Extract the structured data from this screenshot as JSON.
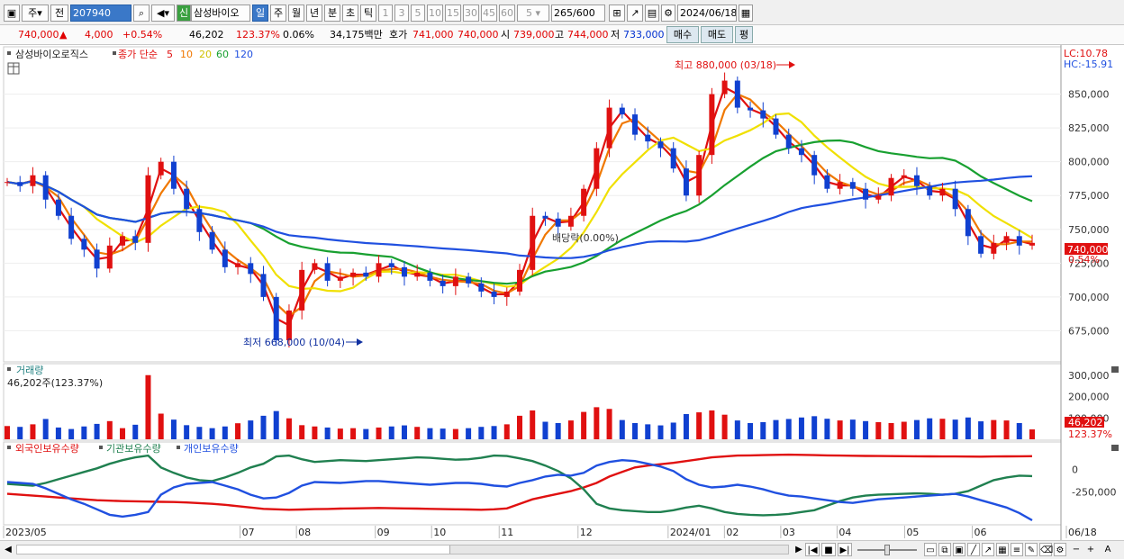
{
  "toolbar": {
    "period_main": "주",
    "prev_label": "전",
    "code": "207940",
    "flag": "신",
    "name": "삼성바이오",
    "period_tabs": [
      "일",
      "주",
      "월",
      "년",
      "분",
      "초",
      "틱"
    ],
    "intervals": [
      "1",
      "3",
      "5",
      "10",
      "15",
      "30",
      "45",
      "60"
    ],
    "interval_value": "5",
    "count": "265",
    "count_max": "/600",
    "date": "2024/06/18"
  },
  "quote": {
    "price": "740,000",
    "change": "4,000",
    "change_pct": "+0.54%",
    "volume": "46,202",
    "volume_ratio": "123.37%",
    "turnover_rate": "0.06%",
    "amount": "34,175백만",
    "bid_label": "호가",
    "ask_price": "741,000",
    "bid_price": "740,000",
    "open_label": "시",
    "open": "739,000",
    "high_label": "고",
    "high": "744,000",
    "low_label": "저",
    "low": "733,000",
    "buy_button": "매수",
    "sell_button": "매도",
    "eval_button": "평"
  },
  "chart_data": {
    "type": "candlestick",
    "title": "삼성바이오로직스",
    "ma_label": "종가 단순",
    "ma_periods": [
      5,
      10,
      20,
      60,
      120
    ],
    "ma_colors": [
      "#e01010",
      "#f07800",
      "#f0e000",
      "#18a030",
      "#2050e0"
    ],
    "lc_label": "LC:10.78",
    "hc_label": "HC:-15.91",
    "y_ticks": [
      850000,
      825000,
      800000,
      775000,
      750000,
      725000,
      700000,
      675000
    ],
    "y_tick_labels": [
      "850,000",
      "825,000",
      "800,000",
      "775,000",
      "750,000",
      "725,000",
      "700,000",
      "675,000"
    ],
    "ylim": [
      652000,
      885000
    ],
    "price_marker": "740,000",
    "price_marker_pct": "0.54%",
    "annotations": {
      "high": "최고 880,000 (03/18)",
      "low": "최저 668,000 (10/04)",
      "dividend": "배당락(0.00%)"
    },
    "x_labels": [
      "2023/05",
      "07",
      "08",
      "09",
      "10",
      "11",
      "12",
      "2024/01",
      "02",
      "03",
      "04",
      "05",
      "06",
      "06/18"
    ],
    "series": [
      {
        "name": "종가",
        "values": [
          785000,
          782000,
          790000,
          772000,
          760000,
          743000,
          735000,
          721000,
          738000,
          745000,
          740000,
          790000,
          800000,
          780000,
          765000,
          748000,
          735000,
          722000,
          725000,
          717000,
          700000,
          668000,
          690000,
          720000,
          725000,
          712000,
          715000,
          718000,
          715000,
          725000,
          722000,
          715000,
          718000,
          712000,
          708000,
          715000,
          710000,
          704000,
          700000,
          704000,
          720000,
          760000,
          758000,
          752000,
          760000,
          780000,
          810000,
          840000,
          835000,
          820000,
          815000,
          810000,
          795000,
          775000,
          805000,
          850000,
          860000,
          840000,
          838000,
          832000,
          820000,
          810000,
          805000,
          790000,
          780000,
          785000,
          780000,
          772000,
          775000,
          788000,
          790000,
          782000,
          775000,
          780000,
          765000,
          745000,
          732000,
          740000,
          745000,
          738000,
          740000
        ]
      }
    ],
    "volume": {
      "label": "거래량",
      "current": "46,202주(123.37%)",
      "y_tick_labels": [
        "300,000",
        "200,000",
        "100,000"
      ],
      "ylim": [
        0,
        320000
      ],
      "current_marker": "46,202",
      "current_marker_pct": "123.37%",
      "values": [
        62000,
        58000,
        70000,
        95000,
        55000,
        48000,
        60000,
        72000,
        85000,
        52000,
        68000,
        300000,
        120000,
        92000,
        66000,
        58000,
        52000,
        60000,
        75000,
        88000,
        110000,
        132000,
        98000,
        66000,
        60000,
        55000,
        50000,
        52000,
        48000,
        55000,
        60000,
        65000,
        58000,
        52000,
        50000,
        48000,
        52000,
        58000,
        62000,
        70000,
        110000,
        135000,
        82000,
        76000,
        88000,
        128000,
        150000,
        142000,
        90000,
        76000,
        70000,
        65000,
        78000,
        118000,
        126000,
        135000,
        115000,
        88000,
        76000,
        80000,
        90000,
        95000,
        102000,
        108000,
        96000,
        88000,
        92000,
        85000,
        80000,
        76000,
        82000,
        90000,
        98000,
        96000,
        92000,
        102000,
        84000,
        90000,
        88000,
        76000,
        46202
      ]
    },
    "holdings": {
      "labels": [
        "외국인보유수량",
        "기관보유수량",
        "개인보유수량"
      ],
      "colors": [
        "#e01010",
        "#208050",
        "#2050e0"
      ],
      "y_tick_labels": [
        "0",
        "-250,000"
      ],
      "ylim": [
        -600000,
        250000
      ],
      "series": [
        {
          "name": "외국인보유수량",
          "values": [
            -270000,
            -280000,
            -290000,
            -300000,
            -310000,
            -320000,
            -330000,
            -340000,
            -345000,
            -350000,
            -352000,
            -355000,
            -358000,
            -360000,
            -365000,
            -372000,
            -380000,
            -390000,
            -405000,
            -420000,
            -435000,
            -440000,
            -445000,
            -442000,
            -438000,
            -436000,
            -432000,
            -430000,
            -428000,
            -425000,
            -428000,
            -430000,
            -432000,
            -435000,
            -438000,
            -440000,
            -442000,
            -445000,
            -440000,
            -430000,
            -380000,
            -330000,
            -300000,
            -270000,
            -240000,
            -200000,
            -150000,
            -80000,
            -30000,
            20000,
            40000,
            55000,
            70000,
            90000,
            110000,
            130000,
            140000,
            150000,
            152000,
            155000,
            158000,
            160000,
            158000,
            155000,
            152000,
            150000,
            148000,
            146000,
            145000,
            144000,
            143000,
            142000,
            141000,
            140000,
            140000,
            139000,
            138000,
            140000,
            141000,
            142000,
            143000
          ]
        },
        {
          "name": "기관보유수량",
          "values": [
            -160000,
            -170000,
            -180000,
            -150000,
            -110000,
            -70000,
            -30000,
            10000,
            60000,
            100000,
            130000,
            150000,
            20000,
            -40000,
            -90000,
            -120000,
            -130000,
            -90000,
            -40000,
            20000,
            60000,
            140000,
            150000,
            110000,
            80000,
            90000,
            100000,
            95000,
            90000,
            100000,
            110000,
            120000,
            130000,
            125000,
            115000,
            105000,
            110000,
            125000,
            150000,
            145000,
            120000,
            90000,
            40000,
            -20000,
            -100000,
            -220000,
            -380000,
            -430000,
            -450000,
            -460000,
            -470000,
            -470000,
            -450000,
            -420000,
            -400000,
            -430000,
            -470000,
            -490000,
            -500000,
            -505000,
            -500000,
            -490000,
            -470000,
            -450000,
            -400000,
            -350000,
            -310000,
            -290000,
            -280000,
            -275000,
            -270000,
            -265000,
            -270000,
            -280000,
            -270000,
            -240000,
            -180000,
            -120000,
            -90000,
            -70000,
            -75000
          ]
        },
        {
          "name": "개인보유수량",
          "values": [
            -140000,
            -150000,
            -160000,
            -210000,
            -270000,
            -330000,
            -380000,
            -440000,
            -500000,
            -520000,
            -500000,
            -470000,
            -280000,
            -200000,
            -160000,
            -150000,
            -140000,
            -180000,
            -220000,
            -280000,
            -320000,
            -310000,
            -260000,
            -180000,
            -140000,
            -145000,
            -150000,
            -140000,
            -130000,
            -130000,
            -140000,
            -150000,
            -160000,
            -170000,
            -160000,
            -150000,
            -150000,
            -160000,
            -180000,
            -190000,
            -150000,
            -120000,
            -80000,
            -60000,
            -70000,
            -40000,
            40000,
            80000,
            100000,
            90000,
            60000,
            30000,
            -20000,
            -110000,
            -170000,
            -200000,
            -190000,
            -170000,
            -190000,
            -220000,
            -260000,
            -290000,
            -300000,
            -320000,
            -340000,
            -360000,
            -370000,
            -350000,
            -330000,
            -320000,
            -310000,
            -300000,
            -290000,
            -280000,
            -270000,
            -300000,
            -340000,
            -380000,
            -420000,
            -480000,
            -560000
          ]
        }
      ]
    }
  },
  "bottombar": {
    "scroll_left": "◀",
    "scroll_right": "▶",
    "first": "|◀",
    "play": "■",
    "last": "▶|",
    "zoom_out": "−",
    "zoom_in": "+",
    "text_tool": "A"
  }
}
